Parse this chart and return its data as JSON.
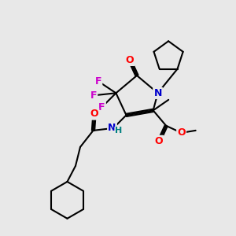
{
  "background_color": "#e8e8e8",
  "bond_color": "#000000",
  "bond_width": 1.5,
  "atom_colors": {
    "O": "#ff0000",
    "N": "#0000cc",
    "F": "#cc00cc",
    "H": "#008080",
    "C": "#000000"
  },
  "font_size_atom": 9,
  "font_size_h": 8
}
